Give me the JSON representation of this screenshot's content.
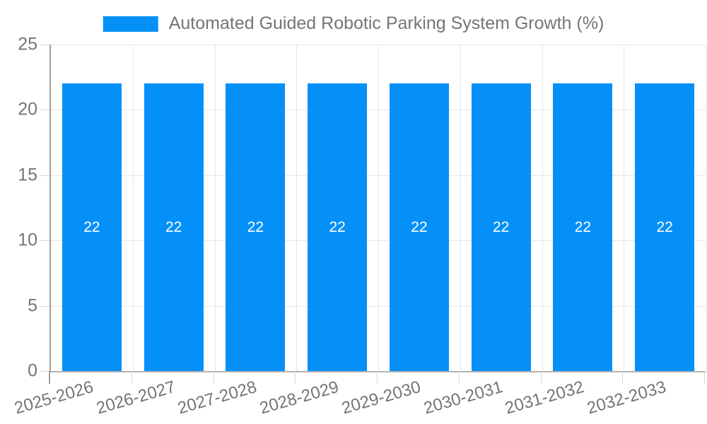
{
  "legend": {
    "label": "Automated Guided Robotic Parking System Growth (%)",
    "swatch_color": "#0590f8"
  },
  "chart_data": {
    "type": "bar",
    "title": "Automated Guided Robotic Parking System Growth (%)",
    "categories": [
      "2025-2026",
      "2026-2027",
      "2027-2028",
      "2028-2029",
      "2029-2030",
      "2030-2031",
      "2031-2032",
      "2032-2033"
    ],
    "values": [
      22,
      22,
      22,
      22,
      22,
      22,
      22,
      22
    ],
    "bar_labels": [
      "22",
      "22",
      "22",
      "22",
      "22",
      "22",
      "22",
      "22"
    ],
    "xlabel": "",
    "ylabel": "",
    "ylim": [
      0,
      25
    ],
    "yticks": [
      0,
      5,
      10,
      15,
      20,
      25
    ],
    "grid": true,
    "legend_position": "top",
    "x_label_rotation_deg": -16
  },
  "colors": {
    "bar": "#0590f8",
    "bar_label": "#ffffff",
    "gridline": "#e6e6e6",
    "tick": "#d9d9d9",
    "y_axis_line": "#9e9e9e",
    "x_axis_line": "#b3b3b3",
    "text": "#757575",
    "background": "#ffffff"
  }
}
